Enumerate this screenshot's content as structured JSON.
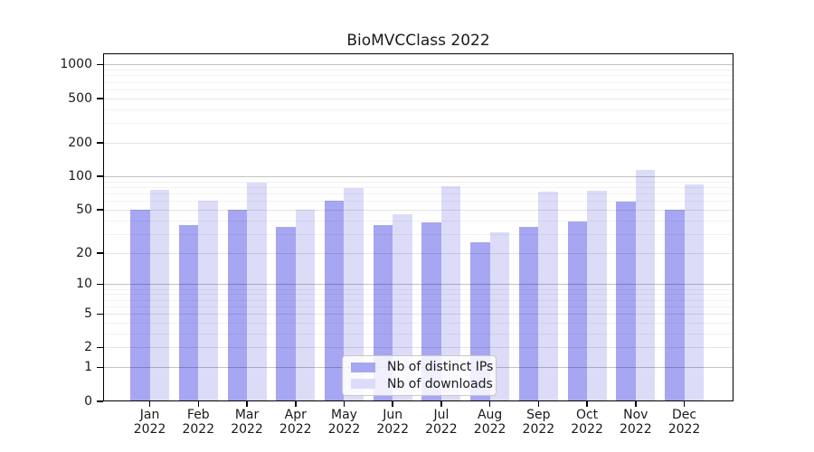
{
  "chart_data": {
    "type": "bar",
    "title": "BioMVCClass 2022",
    "categories": [
      "Jan",
      "Feb",
      "Mar",
      "Apr",
      "May",
      "Jun",
      "Jul",
      "Aug",
      "Sep",
      "Oct",
      "Nov",
      "Dec"
    ],
    "xtick_year": "2022",
    "series": [
      {
        "name": "Nb of distinct IPs",
        "color": "#a6a6f2",
        "values": [
          50,
          36,
          50,
          35,
          60,
          36,
          38,
          25,
          35,
          39,
          59,
          50
        ]
      },
      {
        "name": "Nb of downloads",
        "color": "#dcdcf9",
        "values": [
          76,
          60,
          88,
          50,
          78,
          45,
          82,
          31,
          73,
          74,
          115,
          84
        ]
      }
    ],
    "yticks": [
      0,
      1,
      2,
      5,
      10,
      20,
      50,
      100,
      200,
      500,
      1000
    ],
    "ytick_labels": [
      "0",
      "1",
      "2",
      "5",
      "10",
      "20",
      "50",
      "100",
      "200",
      "500",
      "1000"
    ],
    "yscale": "log10(value+1)",
    "ylim": [
      0,
      1250
    ],
    "xlabel": "",
    "ylabel": "",
    "grid": "horizontal major + log minor",
    "legend_position": "inside-bottom-center"
  },
  "colors": {
    "background": "#ffffff",
    "spine": "#000000",
    "text": "#1a1a1a",
    "legend_border": "#c9c9c9"
  }
}
